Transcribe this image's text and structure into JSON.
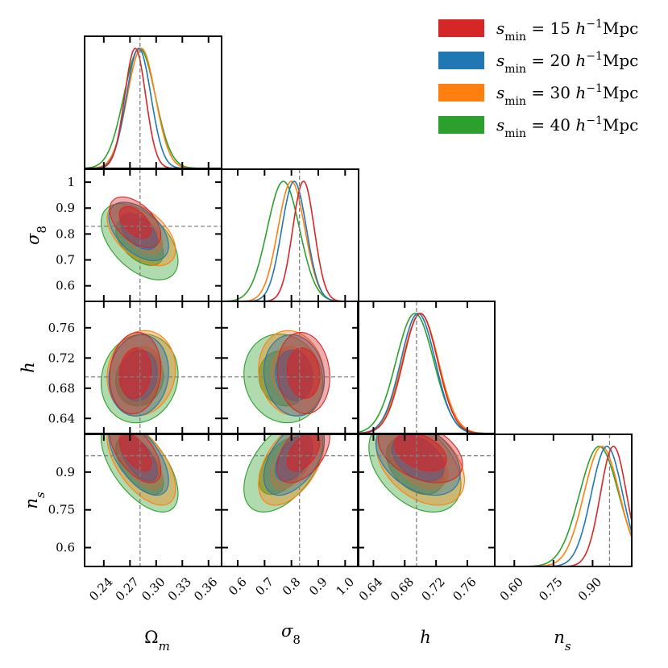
{
  "chart_data": {
    "type": "corner",
    "parameters": [
      {
        "name": "Omega_m",
        "label_main": "Ω",
        "label_sub": "m",
        "range": [
          0.218,
          0.375
        ],
        "ticks": [
          0.24,
          0.27,
          0.3,
          0.33,
          0.36
        ],
        "tick_labels": [
          "0.24",
          "0.27",
          "0.30",
          "0.33",
          "0.36"
        ],
        "truth": 0.2815
      },
      {
        "name": "sigma_8",
        "label_main": "σ",
        "label_sub": "8",
        "range": [
          0.54,
          1.05
        ],
        "ticks": [
          0.6,
          0.7,
          0.8,
          0.9,
          1.0
        ],
        "tick_labels": [
          "0.6",
          "0.7",
          "0.8",
          "0.9",
          "1.0"
        ],
        "y_tick_labels": [
          "0.6",
          "0.7",
          "0.8",
          "0.9",
          "1"
        ],
        "truth": 0.83
      },
      {
        "name": "h",
        "label_main": "h",
        "label_sub": "",
        "range": [
          0.62,
          0.795
        ],
        "ticks": [
          0.64,
          0.68,
          0.72,
          0.76
        ],
        "tick_labels": [
          "0.64",
          "0.68",
          "0.72",
          "0.76"
        ],
        "truth": 0.695
      },
      {
        "name": "n_s",
        "label_main": "n",
        "label_sub": "s",
        "range": [
          0.525,
          1.05
        ],
        "ticks": [
          0.6,
          0.75,
          0.9
        ],
        "tick_labels": [
          "0.60",
          "0.75",
          "0.90"
        ],
        "y_tick_labels": [
          "0.6",
          "0.75",
          "0.9"
        ],
        "truth": 0.965
      }
    ],
    "series": [
      {
        "name": "smin_15",
        "color": "#d62728",
        "order": 0,
        "means": [
          0.276,
          0.845,
          0.7,
          0.98
        ],
        "sigmas": [
          0.012,
          0.04,
          0.022,
          0.05
        ],
        "corr": {
          "0_1": -0.5,
          "0_2": 0.1,
          "0_3": -0.6,
          "1_2": -0.1,
          "1_3": 0.5,
          "2_3": -0.4
        }
      },
      {
        "name": "smin_20",
        "color": "#1f77b4",
        "order": 1,
        "means": [
          0.28,
          0.81,
          0.697,
          0.955
        ],
        "sigmas": [
          0.014,
          0.046,
          0.022,
          0.06
        ],
        "corr": {
          "0_1": -0.5,
          "0_2": 0.1,
          "0_3": -0.6,
          "1_2": -0.1,
          "1_3": 0.5,
          "2_3": -0.4
        }
      },
      {
        "name": "smin_30",
        "color": "#ff7f0e",
        "order": 2,
        "means": [
          0.283,
          0.8,
          0.7,
          0.935
        ],
        "sigmas": [
          0.016,
          0.05,
          0.023,
          0.068
        ],
        "corr": {
          "0_1": -0.5,
          "0_2": 0.1,
          "0_3": -0.6,
          "1_2": -0.1,
          "1_3": 0.5,
          "2_3": -0.4
        }
      },
      {
        "name": "smin_40",
        "color": "#2ca02c",
        "order": 3,
        "means": [
          0.281,
          0.77,
          0.693,
          0.925
        ],
        "sigmas": [
          0.018,
          0.06,
          0.024,
          0.075
        ],
        "corr": {
          "0_1": -0.5,
          "0_2": 0.1,
          "0_3": -0.6,
          "1_2": -0.1,
          "1_3": 0.5,
          "2_3": -0.4
        }
      }
    ],
    "legend": {
      "placement": "top-right",
      "entries": [
        {
          "prefix": "s",
          "sub": "min",
          "value": " = 15 ",
          "unit_h": "h",
          "exp": "−1",
          "unit": "Mpc",
          "color": "#d62728"
        },
        {
          "prefix": "s",
          "sub": "min",
          "value": " = 20 ",
          "unit_h": "h",
          "exp": "−1",
          "unit": "Mpc",
          "color": "#1f77b4"
        },
        {
          "prefix": "s",
          "sub": "min",
          "value": " = 30 ",
          "unit_h": "h",
          "exp": "−1",
          "unit": "Mpc",
          "color": "#ff7f0e"
        },
        {
          "prefix": "s",
          "sub": "min",
          "value": " = 40 ",
          "unit_h": "h",
          "exp": "−1",
          "unit": "Mpc",
          "color": "#2ca02c"
        }
      ]
    }
  }
}
